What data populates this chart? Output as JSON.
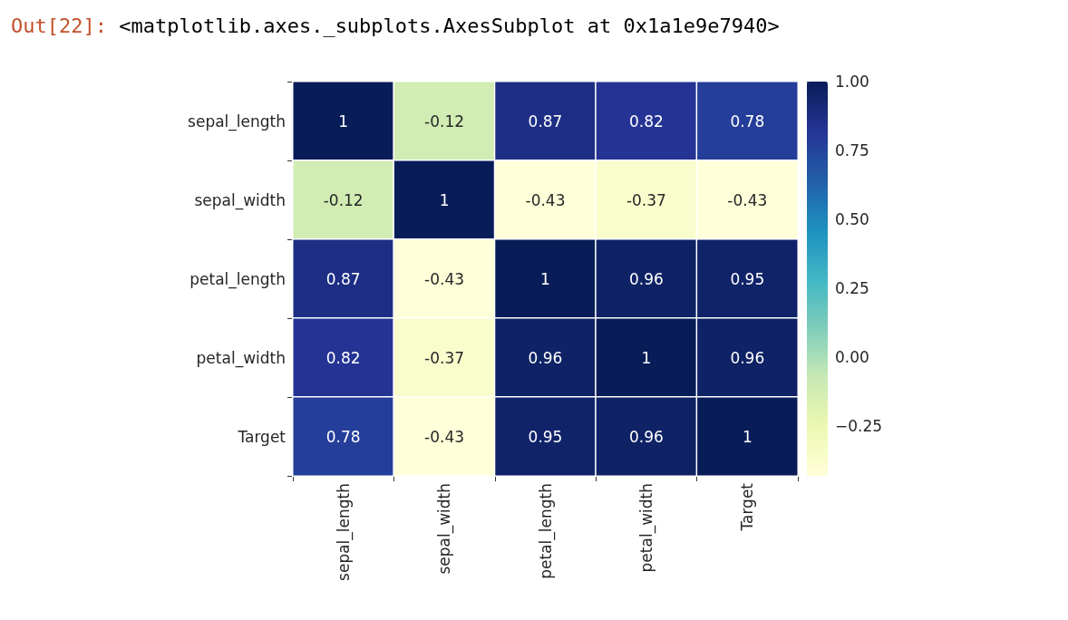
{
  "chart_data": {
    "type": "heatmap",
    "annotations": [
      "Out[22]: <matplotlib.axes._subplots.AxesSubplot at 0x1a1e9e7940>"
    ],
    "categories": [
      "sepal_length",
      "sepal_width",
      "petal_length",
      "petal_width",
      "Target"
    ],
    "y_categories": [
      "sepal_length",
      "sepal_width",
      "petal_length",
      "petal_width",
      "Target"
    ],
    "cells": [
      [
        1,
        -0.12,
        0.87,
        0.82,
        0.78
      ],
      [
        -0.12,
        1,
        -0.43,
        -0.37,
        -0.43
      ],
      [
        0.87,
        -0.43,
        1,
        0.96,
        0.95
      ],
      [
        0.82,
        -0.37,
        0.96,
        1,
        0.96
      ],
      [
        0.78,
        -0.43,
        0.95,
        0.96,
        1
      ]
    ],
    "data_labels": true,
    "clim": [
      -0.43,
      1
    ],
    "cticks": [
      {
        "value": -0.25,
        "label": "−0.25"
      },
      {
        "value": 0,
        "label": "0.00"
      },
      {
        "value": 0.25,
        "label": "0.25"
      },
      {
        "value": 0.5,
        "label": "0.50"
      },
      {
        "value": 0.75,
        "label": "0.75"
      },
      {
        "value": 1,
        "label": "1.00"
      }
    ]
  }
}
